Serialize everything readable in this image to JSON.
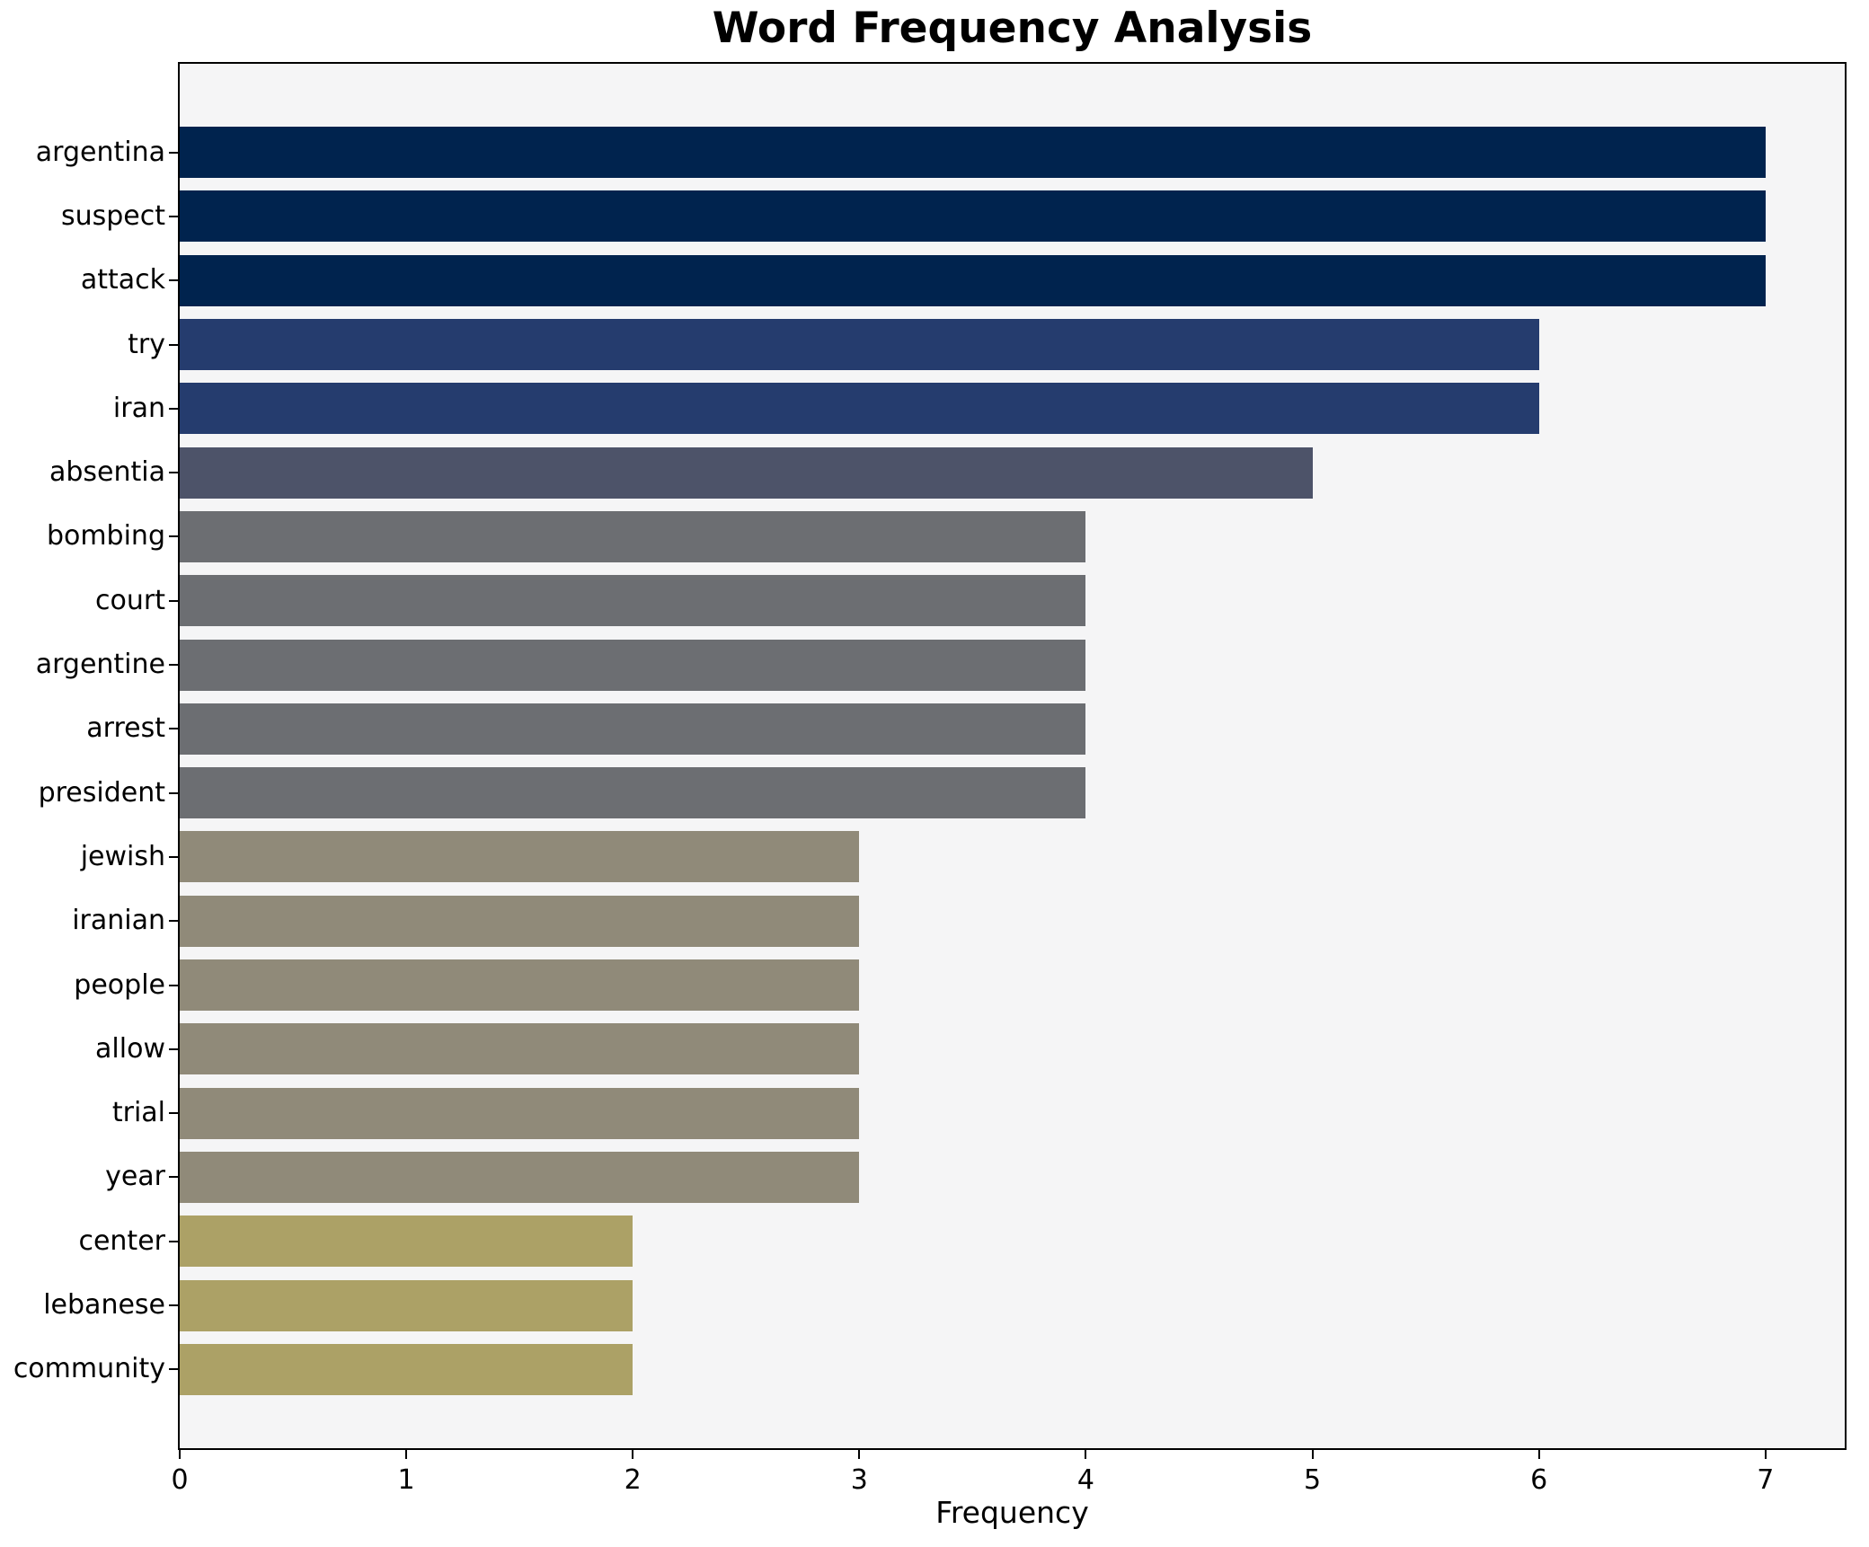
{
  "figure": {
    "title": "Word Frequency Analysis",
    "xlabel": "Frequency",
    "background_color": "#ffffff",
    "plot_background_color": "#f5f5f6",
    "spine_color": "#000000"
  },
  "chart_data": {
    "type": "bar",
    "orientation": "horizontal",
    "title": "Word Frequency Analysis",
    "xlabel": "Frequency",
    "ylabel": "",
    "categories": [
      "argentina",
      "suspect",
      "attack",
      "try",
      "iran",
      "absentia",
      "bombing",
      "court",
      "argentine",
      "arrest",
      "president",
      "jewish",
      "iranian",
      "people",
      "allow",
      "trial",
      "year",
      "center",
      "lebanese",
      "community"
    ],
    "values": [
      7,
      7,
      7,
      6,
      6,
      5,
      4,
      4,
      4,
      4,
      4,
      3,
      3,
      3,
      3,
      3,
      3,
      2,
      2,
      2
    ],
    "bar_colors": [
      "#00234e",
      "#00234e",
      "#00234e",
      "#253c6e",
      "#253c6e",
      "#4d5369",
      "#6c6e72",
      "#6c6e72",
      "#6c6e72",
      "#6c6e72",
      "#6c6e72",
      "#908a79",
      "#908a79",
      "#908a79",
      "#908a79",
      "#908a79",
      "#908a79",
      "#aca166",
      "#aca166",
      "#aca166"
    ],
    "xticks": [
      0,
      1,
      2,
      3,
      4,
      5,
      6,
      7
    ],
    "xlim": [
      0,
      7.35
    ],
    "grid": false,
    "legend": null
  }
}
